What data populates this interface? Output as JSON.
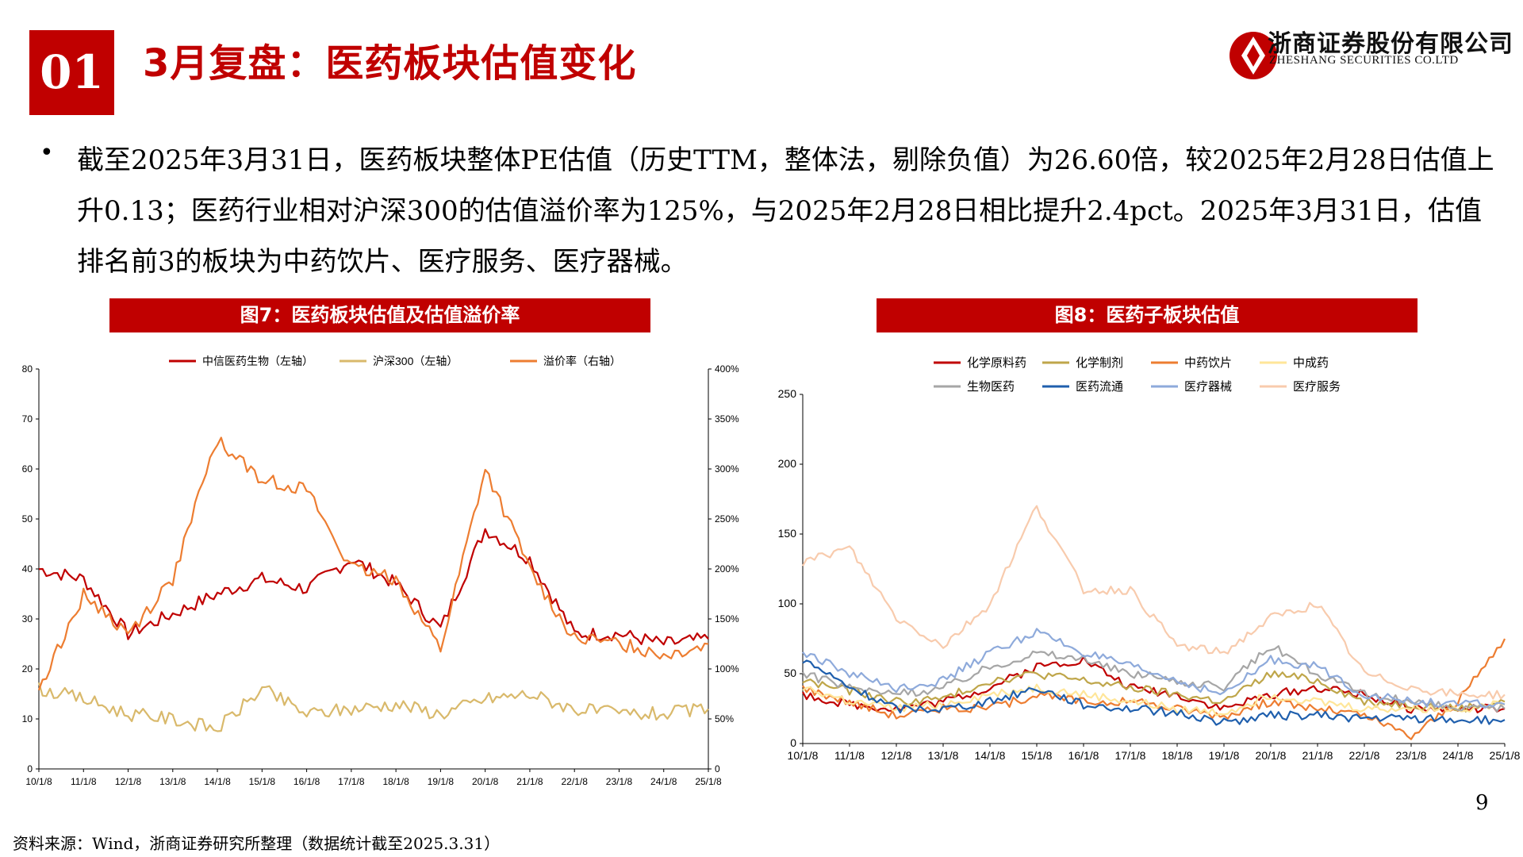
{
  "header": {
    "section_number": "01",
    "title": "3月复盘：医药板块估值变化",
    "company_cn": "浙商证券股份有限公司",
    "company_en": "ZHESHANG SECURITIES CO.LTD",
    "brand_color": "#c00000"
  },
  "body": {
    "bullet": "•",
    "paragraph": "截至2025年3月31日，医药板块整体PE估值（历史TTM，整体法，剔除负值）为26.60倍，较2025年2月28日估值上升0.13；医药行业相对沪深300的估值溢价率为125%，与2025年2月28日相比提升2.4pct。2025年3月31日，估值排名前3的板块为中药饮片、医疗服务、医疗器械。"
  },
  "figures": {
    "fig7_title": "图7：医药板块估值及估值溢价率",
    "fig8_title": "图8：医药子板块估值"
  },
  "footer": {
    "page_number": "9",
    "source": "资料来源：Wind，浙商证券研究所整理（数据统计截至2025.3.31）"
  },
  "chart_data": [
    {
      "type": "line",
      "title": "图7：医药板块估值及估值溢价率",
      "x": [
        "10/1/8",
        "11/1/8",
        "12/1/8",
        "13/1/8",
        "14/1/8",
        "15/1/8",
        "16/1/8",
        "17/1/8",
        "18/1/8",
        "19/1/8",
        "20/1/8",
        "21/1/8",
        "22/1/8",
        "23/1/8",
        "24/1/8",
        "25/1/8"
      ],
      "ylim": [
        0,
        80
      ],
      "y_ticks": [
        "0",
        "10",
        "20",
        "30",
        "40",
        "50",
        "60",
        "70",
        "80"
      ],
      "y2lim": [
        0,
        400
      ],
      "y2_ticks": [
        "0",
        "50%",
        "100%",
        "150%",
        "200%",
        "250%",
        "300%",
        "350%",
        "400%"
      ],
      "legend_position": "top",
      "series": [
        {
          "name": "中信医药生物（左轴）",
          "axis": "left",
          "color": "#c00000",
          "values": [
            40,
            38,
            27,
            31,
            35,
            38,
            36,
            42,
            37,
            28,
            48,
            42,
            27,
            27,
            25,
            26
          ]
        },
        {
          "name": "沪深300（左轴）",
          "axis": "left",
          "color": "#d9b96b",
          "values": [
            16,
            14,
            11,
            10,
            8,
            16,
            11,
            12,
            13,
            11,
            14,
            15,
            12,
            11,
            11,
            12
          ]
        },
        {
          "name": "溢价率（右轴）",
          "axis": "right",
          "color": "#ed7d31",
          "values": [
            80,
            175,
            135,
            190,
            330,
            290,
            280,
            200,
            190,
            120,
            300,
            200,
            130,
            125,
            115,
            125
          ]
        }
      ]
    },
    {
      "type": "line",
      "title": "图8：医药子板块估值",
      "x": [
        "10/1/8",
        "11/1/8",
        "12/1/8",
        "13/1/8",
        "14/1/8",
        "15/1/8",
        "16/1/8",
        "17/1/8",
        "18/1/8",
        "19/1/8",
        "20/1/8",
        "21/1/8",
        "22/1/8",
        "23/1/8",
        "24/1/8",
        "25/1/8"
      ],
      "ylim": [
        0,
        250
      ],
      "y_ticks": [
        "0",
        "50",
        "100",
        "150",
        "200",
        "250"
      ],
      "legend_position": "top",
      "series": [
        {
          "name": "化学原料药",
          "color": "#c00000",
          "values": [
            35,
            28,
            25,
            30,
            40,
            55,
            60,
            40,
            35,
            25,
            35,
            40,
            35,
            25,
            25,
            25
          ]
        },
        {
          "name": "化学制剂",
          "color": "#bfa64a",
          "values": [
            45,
            38,
            30,
            32,
            45,
            50,
            45,
            40,
            35,
            30,
            50,
            45,
            30,
            28,
            25,
            30
          ]
        },
        {
          "name": "中药饮片",
          "color": "#ed7d31",
          "values": [
            40,
            30,
            20,
            25,
            25,
            35,
            30,
            30,
            25,
            20,
            30,
            25,
            20,
            5,
            30,
            75
          ]
        },
        {
          "name": "中成药",
          "color": "#ffe699",
          "values": [
            40,
            30,
            25,
            28,
            35,
            40,
            35,
            30,
            25,
            22,
            35,
            30,
            25,
            25,
            25,
            28
          ]
        },
        {
          "name": "生物医药",
          "color": "#a6a6a6",
          "values": [
            50,
            40,
            35,
            40,
            55,
            65,
            60,
            50,
            45,
            40,
            70,
            50,
            35,
            30,
            25,
            25
          ]
        },
        {
          "name": "医药流通",
          "color": "#1f5fad",
          "values": [
            60,
            40,
            25,
            25,
            30,
            40,
            28,
            25,
            22,
            15,
            20,
            20,
            18,
            18,
            17,
            17
          ]
        },
        {
          "name": "医疗器械",
          "color": "#8eaadb",
          "values": [
            65,
            50,
            40,
            45,
            65,
            80,
            65,
            55,
            45,
            35,
            60,
            55,
            35,
            30,
            28,
            28
          ]
        },
        {
          "name": "医疗服务",
          "color": "#f8cbad",
          "values": [
            130,
            140,
            90,
            70,
            100,
            170,
            110,
            110,
            70,
            65,
            90,
            100,
            50,
            40,
            35,
            35
          ]
        }
      ]
    }
  ]
}
